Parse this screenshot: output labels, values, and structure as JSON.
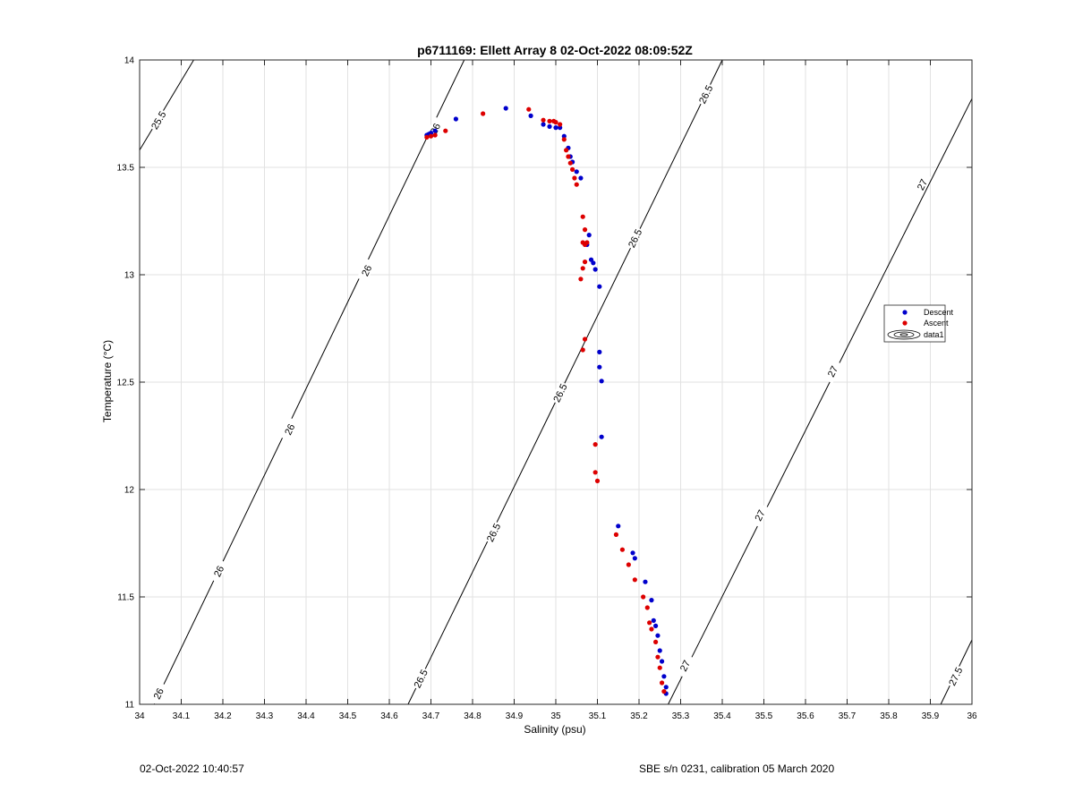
{
  "footer": {
    "left": "02-Oct-2022 10:40:57",
    "right": "SBE s/n 0231, calibration 05 March 2020"
  },
  "chart_data": {
    "type": "scatter",
    "title": "p6711169: Ellett Array 8 02-Oct-2022 08:09:52Z",
    "xlabel": "Salinity (psu)",
    "ylabel": "Temperature (°C)",
    "xlim": [
      34,
      36
    ],
    "ylim": [
      11,
      14
    ],
    "xticks": [
      34,
      34.1,
      34.2,
      34.3,
      34.4,
      34.5,
      34.6,
      34.7,
      34.8,
      34.9,
      35,
      35.1,
      35.2,
      35.3,
      35.4,
      35.5,
      35.6,
      35.7,
      35.8,
      35.9,
      36
    ],
    "xtick_labels": [
      "34",
      "34.1",
      "34.2",
      "34.3",
      "34.4",
      "34.5",
      "34.6",
      "34.7",
      "34.8",
      "34.9",
      "35",
      "35.1",
      "35.2",
      "35.3",
      "35.4",
      "35.5",
      "35.6",
      "35.7",
      "35.8",
      "35.9",
      "36"
    ],
    "yticks": [
      11,
      11.5,
      12,
      12.5,
      13,
      13.5,
      14
    ],
    "ytick_labels": [
      "11",
      "11.5",
      "12",
      "12.5",
      "13",
      "13.5",
      "14"
    ],
    "grid": true,
    "legend": {
      "position": "right",
      "entries": [
        "Descent",
        "Ascent",
        "data1"
      ]
    },
    "colors": {
      "descent": "#0000cc",
      "ascent": "#dd0000",
      "contour": "#000000",
      "grid": "#e2e2e2"
    },
    "series": [
      {
        "name": "Descent",
        "x": [
          34.69,
          34.695,
          34.7,
          34.71,
          34.76,
          34.88,
          34.94,
          34.97,
          34.985,
          35.0,
          35.01,
          35.02,
          35.03,
          35.035,
          35.04,
          35.05,
          35.06,
          35.075,
          35.08,
          35.085,
          35.09,
          35.095,
          35.105,
          35.105,
          35.105,
          35.11,
          35.11,
          35.15,
          35.185,
          35.19,
          35.215,
          35.23,
          35.235,
          35.24,
          35.245,
          35.25,
          35.255,
          35.26,
          35.265,
          35.265
        ],
        "y": [
          13.65,
          13.655,
          13.66,
          13.67,
          13.725,
          13.775,
          13.74,
          13.7,
          13.69,
          13.685,
          13.685,
          13.645,
          13.59,
          13.55,
          13.525,
          13.48,
          13.45,
          13.14,
          13.185,
          13.07,
          13.055,
          13.025,
          12.945,
          12.64,
          12.57,
          12.505,
          12.245,
          11.83,
          11.705,
          11.68,
          11.57,
          11.485,
          11.39,
          11.365,
          11.32,
          11.25,
          11.2,
          11.13,
          11.08,
          11.05
        ],
        "color": "#0000cc"
      },
      {
        "name": "Ascent",
        "x": [
          34.69,
          34.7,
          34.71,
          34.735,
          34.825,
          34.935,
          34.97,
          34.985,
          34.995,
          35.0,
          35.01,
          35.02,
          35.025,
          35.03,
          35.035,
          35.04,
          35.045,
          35.05,
          35.065,
          35.07,
          35.065,
          35.07,
          35.075,
          35.07,
          35.065,
          35.06,
          35.065,
          35.07,
          35.095,
          35.095,
          35.1,
          35.145,
          35.16,
          35.175,
          35.19,
          35.21,
          35.22,
          35.225,
          35.23,
          35.24,
          35.245,
          35.25,
          35.255,
          35.26
        ],
        "y": [
          13.64,
          13.645,
          13.65,
          13.67,
          13.75,
          13.77,
          13.72,
          13.715,
          13.715,
          13.71,
          13.7,
          13.63,
          13.58,
          13.55,
          13.52,
          13.49,
          13.45,
          13.42,
          13.27,
          13.21,
          13.15,
          13.14,
          13.15,
          13.06,
          13.03,
          12.98,
          12.65,
          12.7,
          12.21,
          12.08,
          12.04,
          11.79,
          11.72,
          11.65,
          11.58,
          11.5,
          11.45,
          11.38,
          11.35,
          11.29,
          11.22,
          11.17,
          11.1,
          11.06
        ],
        "color": "#dd0000"
      }
    ],
    "contours": [
      {
        "level": "25.5",
        "line": [
          [
            34,
            13.58
          ],
          [
            34.13,
            14
          ]
        ],
        "labels": [
          {
            "x": 34.045,
            "y": 13.72
          }
        ]
      },
      {
        "level": "26",
        "line": [
          [
            34.035,
            11
          ],
          [
            34.78,
            14
          ]
        ],
        "labels": [
          {
            "x": 34.045,
            "y": 11.05
          },
          {
            "x": 34.19,
            "y": 11.62
          },
          {
            "x": 34.36,
            "y": 12.28
          },
          {
            "x": 34.545,
            "y": 13.02
          },
          {
            "x": 34.71,
            "y": 13.68
          }
        ]
      },
      {
        "level": "26.5",
        "line": [
          [
            34.645,
            11
          ],
          [
            35.4,
            14
          ]
        ],
        "labels": [
          {
            "x": 34.675,
            "y": 11.12
          },
          {
            "x": 34.85,
            "y": 11.8
          },
          {
            "x": 35.01,
            "y": 12.45
          },
          {
            "x": 35.19,
            "y": 13.17
          },
          {
            "x": 35.36,
            "y": 13.84
          }
        ]
      },
      {
        "level": "27",
        "line": [
          [
            35.27,
            11
          ],
          [
            36,
            13.82
          ]
        ],
        "labels": [
          {
            "x": 35.31,
            "y": 11.18
          },
          {
            "x": 35.49,
            "y": 11.88
          },
          {
            "x": 35.665,
            "y": 12.55
          },
          {
            "x": 35.88,
            "y": 13.42
          }
        ]
      },
      {
        "level": "27.5",
        "line": [
          [
            35.925,
            11
          ],
          [
            36,
            11.3
          ]
        ],
        "labels": [
          {
            "x": 35.96,
            "y": 11.13
          }
        ]
      }
    ]
  }
}
